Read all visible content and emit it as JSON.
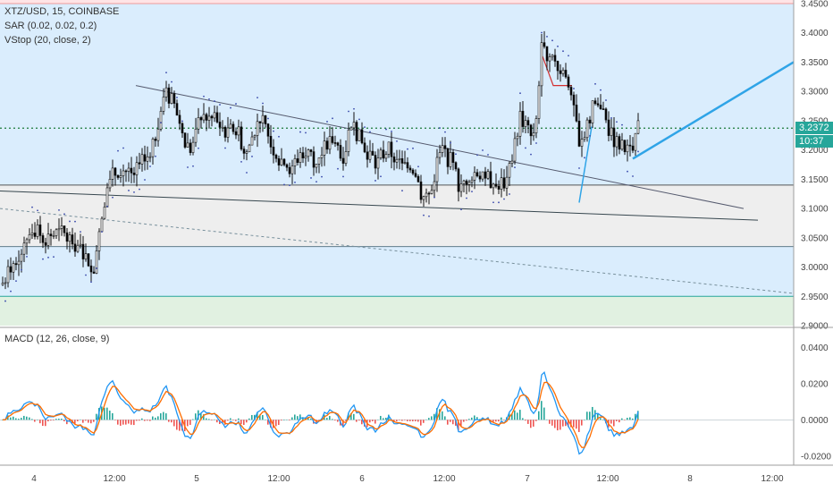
{
  "header": {
    "symbol_line": "XTZ/USD, 15, COINBASE",
    "indicator_sar": "SAR (0.02, 0.02, 0.2)",
    "indicator_vstop": "VStop (20, close, 2)",
    "indicator_macd": "MACD (12, 26, close, 9)"
  },
  "price_tag": {
    "value": "3.2372",
    "countdown": "10:37",
    "color": "#26a69a"
  },
  "colors": {
    "zone_blue": "#bbdefb",
    "zone_gray": "#e0e0e0",
    "zone_green": "#c8e6c9",
    "zone_red": "#ffcdd2",
    "candle_up": "#ffffff",
    "candle_down": "#000000",
    "macd_line": "#2196f3",
    "signal_line": "#ff6d00",
    "hist_up": "#26a69a",
    "hist_down": "#ef5350",
    "trend_line": "#2fa4e7"
  },
  "chart_data": {
    "type": "candlestick",
    "price_axis": {
      "min": 2.9,
      "max": 3.45,
      "ticks": [
        "3.4500",
        "3.4000",
        "3.3500",
        "3.3000",
        "3.2500",
        "3.2000",
        "3.1500",
        "3.1000",
        "3.0500",
        "3.0000",
        "2.9500",
        "2.9000"
      ],
      "tick_values": [
        3.45,
        3.4,
        3.35,
        3.3,
        3.25,
        3.2,
        3.15,
        3.1,
        3.05,
        3.0,
        2.95,
        2.9
      ]
    },
    "time_axis": {
      "ticks": [
        "4",
        "12:00",
        "5",
        "12:00",
        "6",
        "12:00",
        "7",
        "12:00",
        "8",
        "12:00"
      ]
    },
    "zones": [
      {
        "from": 3.45,
        "to": 3.46,
        "kind": "red"
      },
      {
        "from": 3.14,
        "to": 3.45,
        "kind": "blue"
      },
      {
        "from": 3.035,
        "to": 3.14,
        "kind": "gray"
      },
      {
        "from": 2.95,
        "to": 3.035,
        "kind": "blue"
      },
      {
        "from": 2.9,
        "to": 2.95,
        "kind": "green"
      }
    ],
    "last_price": 3.2372,
    "macd_axis": {
      "min": -0.025,
      "max": 0.05,
      "ticks": [
        "0.0400",
        "0.0200",
        "0.0000",
        "-0.0200"
      ],
      "tick_values": [
        0.04,
        0.02,
        0.0,
        -0.02
      ]
    }
  }
}
